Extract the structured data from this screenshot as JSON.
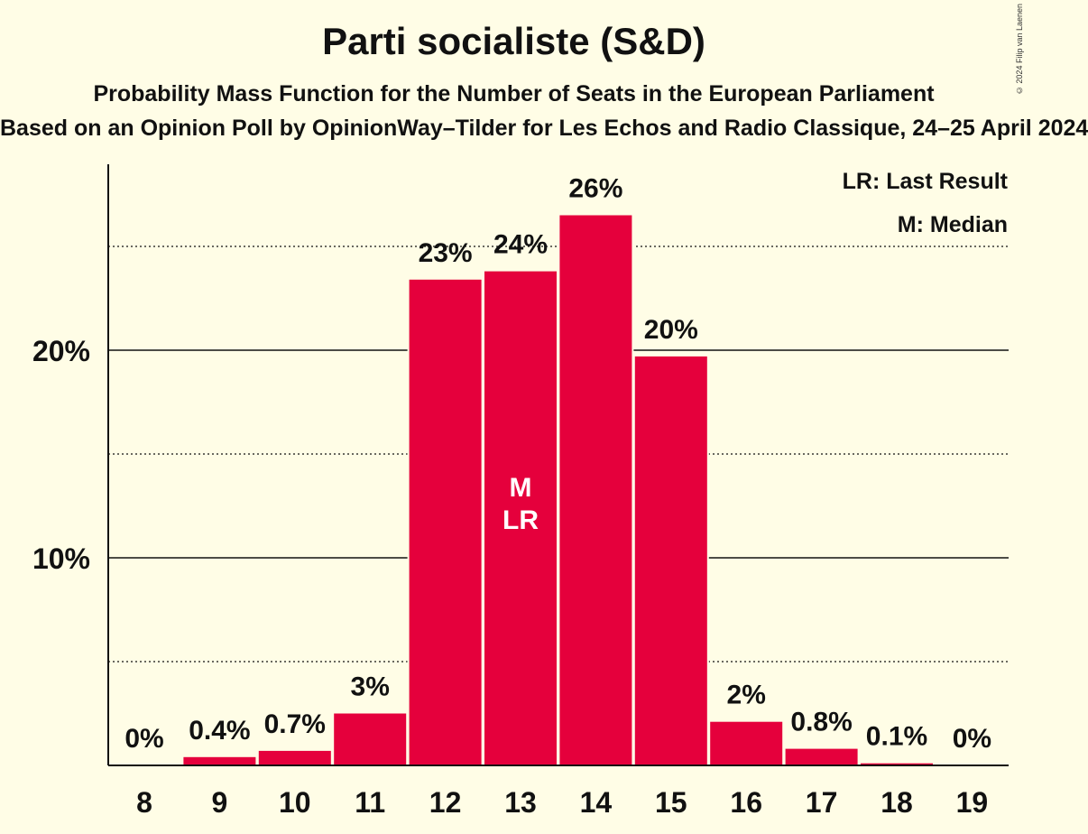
{
  "header": {
    "title": "Parti socialiste (S&D)",
    "subtitle": "Probability Mass Function for the Number of Seats in the European Parliament",
    "source": "Based on an Opinion Poll by OpinionWay–Tilder for Les Echos and Radio Classique, 24–25 April 2024",
    "copyright": "© 2024 Filip van Laenen"
  },
  "legend": {
    "last_result": "LR: Last Result",
    "median": "M: Median"
  },
  "colors": {
    "bar": "#e5003c",
    "background": "#fffde6"
  },
  "chart_data": {
    "type": "bar",
    "categories": [
      "8",
      "9",
      "10",
      "11",
      "12",
      "13",
      "14",
      "15",
      "16",
      "17",
      "18",
      "19"
    ],
    "values": [
      0,
      0.4,
      0.7,
      2.5,
      23.4,
      23.8,
      26.5,
      19.7,
      2.1,
      0.8,
      0.1,
      0
    ],
    "data_labels": [
      "0%",
      "0.4%",
      "0.7%",
      "3%",
      "23%",
      "24%",
      "26%",
      "20%",
      "2%",
      "0.8%",
      "0.1%",
      "0%"
    ],
    "ylim": [
      0,
      29
    ],
    "y_ticks": [
      {
        "value": 10,
        "label": "10%"
      },
      {
        "value": 20,
        "label": "20%"
      }
    ],
    "minor_gridlines": [
      5,
      15,
      25
    ],
    "major_gridlines": [
      10,
      20
    ],
    "annotations": [
      {
        "category": "13",
        "lines": [
          "M",
          "LR"
        ]
      }
    ],
    "legend_placement": "top-right"
  }
}
